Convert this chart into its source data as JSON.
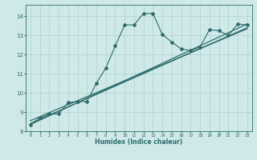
{
  "bg_color": "#cfe9e9",
  "grid_color": "#b0d0d0",
  "line_color": "#2d6b6b",
  "xlabel": "Humidex (Indice chaleur)",
  "xlim": [
    -0.5,
    23.5
  ],
  "ylim": [
    8.0,
    14.6
  ],
  "yticks": [
    8,
    9,
    10,
    11,
    12,
    13,
    14
  ],
  "xticks": [
    0,
    1,
    2,
    3,
    4,
    5,
    6,
    7,
    8,
    9,
    10,
    11,
    12,
    13,
    14,
    15,
    16,
    17,
    18,
    19,
    20,
    21,
    22,
    23
  ],
  "series1_x": [
    0,
    1,
    2,
    3,
    4,
    5,
    6,
    7,
    8,
    9,
    10,
    11,
    12,
    13,
    14,
    15,
    16,
    17,
    18,
    19,
    20,
    21,
    22,
    23
  ],
  "series1_y": [
    8.35,
    8.7,
    8.9,
    8.9,
    9.5,
    9.55,
    9.55,
    10.5,
    11.3,
    12.45,
    13.55,
    13.55,
    14.15,
    14.15,
    13.05,
    12.65,
    12.3,
    12.2,
    12.4,
    13.3,
    13.25,
    13.0,
    13.6,
    13.55
  ],
  "series2_x": [
    0,
    23
  ],
  "series2_y": [
    8.4,
    13.4
  ],
  "series3_x": [
    0,
    23
  ],
  "series3_y": [
    8.55,
    13.35
  ],
  "series4_x": [
    0,
    23
  ],
  "series4_y": [
    8.35,
    13.6
  ]
}
